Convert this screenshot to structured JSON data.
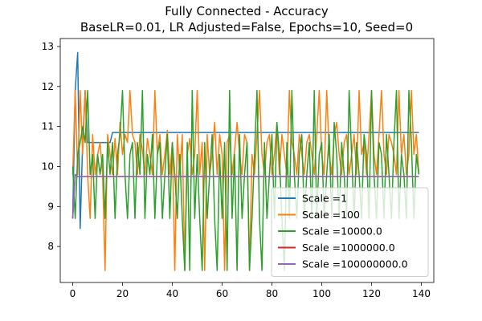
{
  "chart_data": {
    "type": "line",
    "title": "Fully Connected - Accuracy",
    "subtitle": "BaseLR=0.01, LR Adjusted=False, Epochs=10, Seed=0",
    "xlabel": "",
    "ylabel": "",
    "xlim": [
      -5,
      145
    ],
    "ylim": [
      7.1,
      13.2
    ],
    "xticks": [
      0,
      20,
      40,
      60,
      80,
      100,
      120,
      140
    ],
    "yticks": [
      8,
      9,
      10,
      11,
      12,
      13
    ],
    "grid": false,
    "legend_position": "lower-right",
    "series": [
      {
        "name": "Scale =1",
        "color": "#1f77b4",
        "x": [
          0,
          1,
          2,
          3,
          4,
          5,
          6,
          7,
          8,
          9,
          10,
          11,
          12,
          13,
          14,
          15,
          16,
          17,
          18,
          20,
          40,
          60,
          80,
          100,
          120,
          139
        ],
        "y": [
          8.7,
          11.9,
          12.85,
          8.45,
          10.6,
          11.9,
          10.6,
          10.6,
          10.6,
          10.6,
          10.6,
          10.6,
          10.6,
          10.6,
          10.6,
          10.6,
          10.85,
          10.85,
          10.85,
          10.85,
          10.85,
          10.85,
          10.85,
          10.85,
          10.85,
          10.85
        ]
      },
      {
        "name": "Scale =100",
        "color": "#ff7f0e",
        "x": [
          0,
          1,
          2,
          3,
          4,
          5,
          6,
          7,
          8,
          9,
          10,
          11,
          12,
          13,
          14,
          15,
          16,
          17,
          18,
          19,
          20,
          21,
          22,
          23,
          24,
          25,
          26,
          27,
          28,
          29,
          30,
          31,
          32,
          33,
          34,
          35,
          36,
          37,
          38,
          39,
          40,
          41,
          42,
          43,
          44,
          45,
          46,
          47,
          48,
          49,
          50,
          51,
          52,
          53,
          54,
          55,
          56,
          57,
          58,
          59,
          60,
          61,
          62,
          63,
          64,
          65,
          66,
          67,
          68,
          69,
          70,
          71,
          72,
          73,
          74,
          75,
          76,
          77,
          78,
          79,
          80,
          81,
          82,
          83,
          84,
          85,
          86,
          87,
          88,
          89,
          90,
          91,
          92,
          93,
          94,
          95,
          96,
          97,
          98,
          99,
          100,
          101,
          102,
          103,
          104,
          105,
          106,
          107,
          108,
          109,
          110,
          111,
          112,
          113,
          114,
          115,
          116,
          117,
          118,
          119,
          120,
          121,
          122,
          123,
          124,
          125,
          126,
          127,
          128,
          129,
          130,
          131,
          132,
          133,
          134,
          135,
          136,
          137,
          138,
          139
        ],
        "y": [
          9.8,
          11.9,
          9.8,
          11.9,
          10.3,
          11.9,
          9.8,
          8.7,
          10.8,
          9.8,
          10.3,
          10.6,
          9.8,
          7.4,
          10.8,
          10.3,
          9.8,
          10.7,
          9.8,
          11.1,
          10.3,
          10.8,
          10.6,
          11.9,
          10.8,
          10.6,
          9.8,
          10.8,
          10.4,
          9.8,
          10.7,
          10.3,
          9.8,
          11.9,
          10.3,
          10.8,
          9.8,
          10.3,
          10.9,
          9.8,
          10.6,
          7.4,
          10.8,
          9.8,
          10.8,
          7.4,
          10.3,
          10.7,
          9.8,
          10.3,
          11.9,
          9.8,
          10.6,
          7.4,
          10.8,
          9.8,
          10.3,
          11.1,
          9.8,
          10.8,
          10.3,
          7.4,
          10.6,
          10.8,
          9.8,
          10.4,
          11.1,
          10.3,
          9.8,
          10.8,
          10.6,
          7.4,
          10.3,
          9.8,
          10.8,
          11.9,
          10.3,
          9.8,
          10.6,
          10.8,
          9.8,
          10.3,
          11.1,
          9.8,
          10.8,
          10.3,
          9.8,
          11.9,
          10.6,
          10.3,
          9.8,
          10.8,
          10.3,
          9.8,
          10.6,
          10.8,
          10.3,
          9.8,
          10.8,
          11.9,
          10.3,
          9.8,
          11.9,
          10.3,
          9.8,
          10.8,
          11.1,
          10.3,
          9.8,
          10.6,
          10.8,
          9.8,
          10.3,
          10.8,
          9.8,
          11.9,
          10.3,
          10.6,
          9.8,
          10.8,
          11.9,
          10.3,
          9.8,
          10.8,
          11.9,
          10.3,
          9.8,
          10.8,
          10.6,
          10.3,
          9.8,
          11.9,
          10.3,
          10.8,
          9.8,
          10.3,
          11.9,
          10.3,
          10.8,
          9.8
        ]
      },
      {
        "name": "Scale =10000.0",
        "color": "#2ca02c",
        "x": [
          0,
          1,
          2,
          3,
          4,
          5,
          6,
          7,
          8,
          9,
          10,
          11,
          12,
          13,
          14,
          15,
          16,
          17,
          18,
          19,
          20,
          21,
          22,
          23,
          24,
          25,
          26,
          27,
          28,
          29,
          30,
          31,
          32,
          33,
          34,
          35,
          36,
          37,
          38,
          39,
          40,
          41,
          42,
          43,
          44,
          45,
          46,
          47,
          48,
          49,
          50,
          51,
          52,
          53,
          54,
          55,
          56,
          57,
          58,
          59,
          60,
          61,
          62,
          63,
          64,
          65,
          66,
          67,
          68,
          69,
          70,
          71,
          72,
          73,
          74,
          75,
          76,
          77,
          78,
          79,
          80,
          81,
          82,
          83,
          84,
          85,
          86,
          87,
          88,
          89,
          90,
          91,
          92,
          93,
          94,
          95,
          96,
          97,
          98,
          99,
          100,
          101,
          102,
          103,
          104,
          105,
          106,
          107,
          108,
          109,
          110,
          111,
          112,
          113,
          114,
          115,
          116,
          117,
          118,
          119,
          120,
          121,
          122,
          123,
          124,
          125,
          126,
          127,
          128,
          129,
          130,
          131,
          132,
          133,
          134,
          135,
          136,
          137,
          138,
          139
        ],
        "y": [
          10.0,
          8.7,
          10.3,
          10.6,
          11.0,
          10.6,
          11.9,
          9.8,
          10.3,
          8.7,
          10.3,
          9.8,
          10.3,
          8.7,
          10.6,
          9.8,
          10.6,
          8.7,
          10.3,
          10.8,
          11.9,
          9.8,
          8.7,
          10.3,
          10.6,
          8.7,
          10.6,
          9.8,
          11.9,
          8.7,
          10.3,
          9.8,
          10.8,
          8.7,
          10.3,
          10.6,
          8.7,
          9.8,
          10.8,
          8.7,
          10.6,
          9.8,
          8.7,
          10.3,
          8.7,
          7.4,
          10.6,
          7.4,
          11.9,
          8.7,
          10.3,
          8.7,
          7.4,
          10.6,
          8.7,
          9.8,
          10.8,
          8.7,
          7.4,
          10.3,
          8.7,
          10.6,
          7.4,
          11.9,
          8.7,
          10.3,
          7.4,
          10.8,
          8.7,
          9.8,
          10.6,
          7.4,
          8.7,
          10.3,
          11.9,
          8.7,
          7.4,
          10.6,
          8.7,
          9.8,
          10.8,
          8.7,
          11.1,
          10.3,
          8.7,
          7.4,
          10.6,
          8.7,
          11.9,
          9.8,
          8.7,
          10.3,
          10.8,
          8.7,
          9.8,
          10.6,
          8.7,
          11.9,
          8.7,
          10.3,
          10.6,
          8.7,
          9.8,
          10.8,
          8.7,
          11.1,
          10.3,
          8.7,
          10.6,
          9.8,
          8.7,
          11.9,
          10.3,
          8.7,
          10.6,
          9.8,
          8.7,
          10.8,
          10.3,
          8.7,
          11.9,
          9.8,
          8.7,
          10.6,
          10.3,
          8.7,
          10.8,
          9.8,
          8.7,
          10.6,
          11.9,
          8.7,
          10.3,
          9.8,
          8.7,
          11.9,
          10.6,
          8.7,
          10.3,
          9.8
        ]
      },
      {
        "name": "Scale =1000000.0",
        "color": "#d62728",
        "x": [
          0,
          1,
          2,
          20,
          40,
          60,
          80,
          100,
          120,
          139
        ],
        "y": [
          8.7,
          9.8,
          9.75,
          9.75,
          9.75,
          9.75,
          9.75,
          9.75,
          9.75,
          9.75
        ]
      },
      {
        "name": "Scale =100000000.0",
        "color": "#9467bd",
        "x": [
          0,
          1,
          2,
          20,
          40,
          60,
          80,
          100,
          120,
          139
        ],
        "y": [
          8.7,
          9.8,
          9.75,
          9.75,
          9.75,
          9.75,
          9.75,
          9.75,
          9.75,
          9.75
        ]
      }
    ]
  }
}
